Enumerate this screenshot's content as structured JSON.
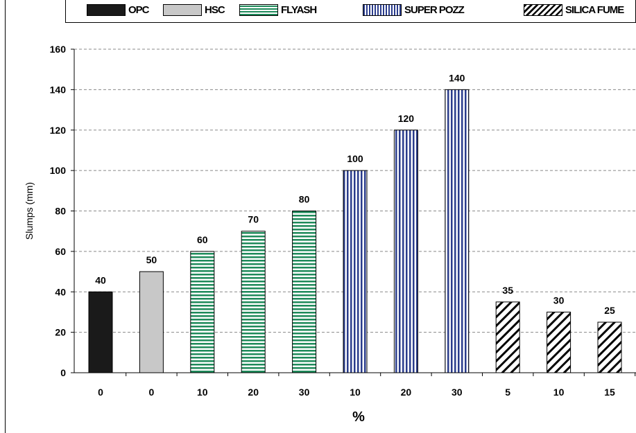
{
  "chart_data": {
    "type": "bar",
    "ylabel": "Slumps (mm)",
    "xlabel": "%",
    "ylim": [
      0,
      160
    ],
    "yticks": [
      0,
      20,
      40,
      60,
      80,
      100,
      120,
      140,
      160
    ],
    "grid": "horizontal dashed",
    "legend_position": "top",
    "legend": [
      {
        "label": "OPC",
        "pattern": "solid",
        "color": "#1a1a1a"
      },
      {
        "label": "HSC",
        "pattern": "solid",
        "color": "#c8c8c8"
      },
      {
        "label": "FLYASH",
        "pattern": "horizontal-stripes",
        "color": "#1e8a5a"
      },
      {
        "label": "SUPER POZZ",
        "pattern": "vertical-stripes",
        "color": "#2a3c8c"
      },
      {
        "label": "SILICA FUME",
        "pattern": "diagonal-hatch",
        "color": "#000000"
      }
    ],
    "bars": [
      {
        "category": "0",
        "series": "OPC",
        "value": 40
      },
      {
        "category": "0",
        "series": "HSC",
        "value": 50
      },
      {
        "category": "10",
        "series": "FLYASH",
        "value": 60
      },
      {
        "category": "20",
        "series": "FLYASH",
        "value": 70
      },
      {
        "category": "30",
        "series": "FLYASH",
        "value": 80
      },
      {
        "category": "10",
        "series": "SUPER POZZ",
        "value": 100
      },
      {
        "category": "20",
        "series": "SUPER POZZ",
        "value": 120
      },
      {
        "category": "30",
        "series": "SUPER POZZ",
        "value": 140
      },
      {
        "category": "5",
        "series": "SILICA FUME",
        "value": 35
      },
      {
        "category": "10",
        "series": "SILICA FUME",
        "value": 30
      },
      {
        "category": "15",
        "series": "SILICA FUME",
        "value": 25
      }
    ]
  }
}
